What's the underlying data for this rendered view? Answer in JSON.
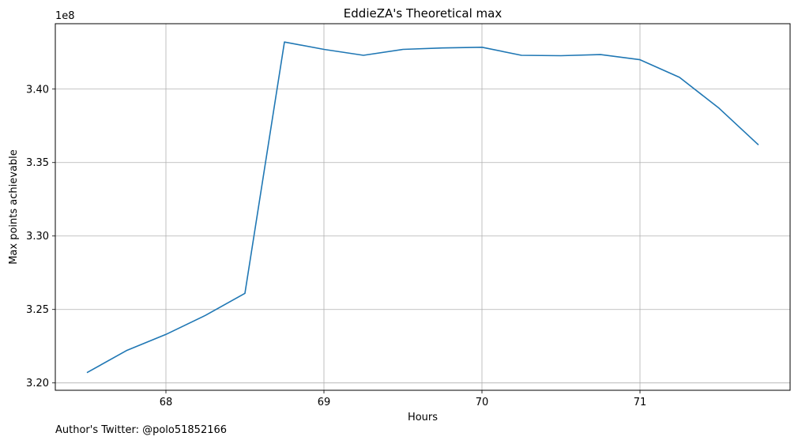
{
  "chart_data": {
    "type": "line",
    "title": "EddieZA's Theoretical max",
    "xlabel": "Hours",
    "ylabel": "Max points achievable",
    "y_offset_label": "1e8",
    "xlim": [
      67.3,
      71.95
    ],
    "ylim": [
      3.195,
      3.4445
    ],
    "x_ticks": [
      68,
      69,
      70,
      71
    ],
    "x_tick_labels": [
      "68",
      "69",
      "70",
      "71"
    ],
    "y_ticks": [
      3.2,
      3.25,
      3.3,
      3.35,
      3.4
    ],
    "y_tick_labels": [
      "3.20",
      "3.25",
      "3.30",
      "3.35",
      "3.40"
    ],
    "grid": true,
    "series": [
      {
        "color": "#1f77b4",
        "x": [
          67.5,
          67.75,
          68.0,
          68.25,
          68.5,
          68.75,
          69.0,
          69.25,
          69.5,
          69.75,
          70.0,
          70.25,
          70.5,
          70.75,
          71.0,
          71.25,
          71.5,
          71.75
        ],
        "y": [
          3.207,
          3.222,
          3.233,
          3.246,
          3.261,
          3.432,
          3.427,
          3.423,
          3.427,
          3.428,
          3.4285,
          3.423,
          3.4227,
          3.4235,
          3.42,
          3.408,
          3.387,
          3.362
        ]
      }
    ]
  },
  "footnote": "Author's Twitter: @polo51852166"
}
